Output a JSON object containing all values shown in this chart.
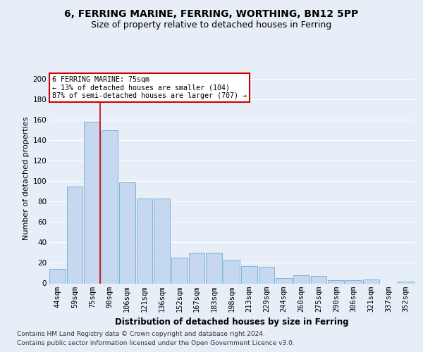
{
  "title1": "6, FERRING MARINE, FERRING, WORTHING, BN12 5PP",
  "title2": "Size of property relative to detached houses in Ferring",
  "xlabel": "Distribution of detached houses by size in Ferring",
  "ylabel": "Number of detached properties",
  "categories": [
    "44sqm",
    "59sqm",
    "75sqm",
    "90sqm",
    "106sqm",
    "121sqm",
    "136sqm",
    "152sqm",
    "167sqm",
    "183sqm",
    "198sqm",
    "213sqm",
    "229sqm",
    "244sqm",
    "260sqm",
    "275sqm",
    "290sqm",
    "306sqm",
    "321sqm",
    "337sqm",
    "352sqm"
  ],
  "values": [
    14,
    95,
    158,
    150,
    99,
    83,
    83,
    25,
    30,
    30,
    23,
    17,
    16,
    5,
    8,
    7,
    3,
    3,
    4,
    0,
    2
  ],
  "bar_color": "#c5d8f0",
  "bar_edge_color": "#6baed6",
  "vline_color": "#cc0000",
  "annotation_text": "6 FERRING MARINE: 75sqm\n← 13% of detached houses are smaller (104)\n87% of semi-detached houses are larger (707) →",
  "annotation_box_color": "#ffffff",
  "annotation_box_edge_color": "#cc0000",
  "ylim": [
    0,
    205
  ],
  "yticks": [
    0,
    20,
    40,
    60,
    80,
    100,
    120,
    140,
    160,
    180,
    200
  ],
  "footer1": "Contains HM Land Registry data © Crown copyright and database right 2024.",
  "footer2": "Contains public sector information licensed under the Open Government Licence v3.0.",
  "background_color": "#e8eef8",
  "plot_background_color": "#e8eef8",
  "title1_fontsize": 10,
  "title2_fontsize": 9,
  "xlabel_fontsize": 8.5,
  "ylabel_fontsize": 8,
  "tick_fontsize": 7.5,
  "footer_fontsize": 6.5
}
